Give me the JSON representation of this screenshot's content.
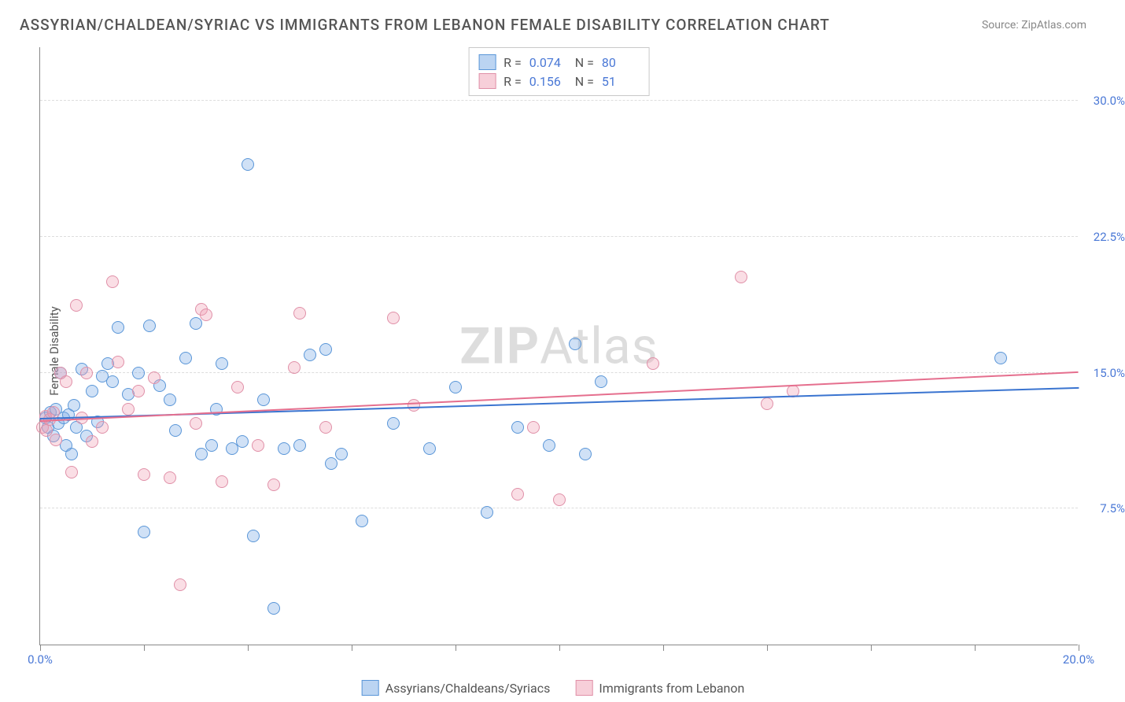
{
  "title": "ASSYRIAN/CHALDEAN/SYRIAC VS IMMIGRANTS FROM LEBANON FEMALE DISABILITY CORRELATION CHART",
  "source": "Source: ZipAtlas.com",
  "ylabel": "Female Disability",
  "watermark_bold": "ZIP",
  "watermark_rest": "Atlas",
  "chart": {
    "type": "scatter",
    "xlim": [
      0,
      20
    ],
    "ylim": [
      0,
      33
    ],
    "xticks": [
      0,
      2,
      4,
      6,
      8,
      10,
      12,
      14,
      16,
      18,
      20
    ],
    "xtick_labels_shown": {
      "0": "0.0%",
      "20": "20.0%"
    },
    "ygrid": [
      7.5,
      15.0,
      22.5,
      30.0
    ],
    "ytick_labels": [
      "7.5%",
      "15.0%",
      "22.5%",
      "30.0%"
    ],
    "background_color": "#ffffff",
    "grid_color": "#dddddd",
    "axis_color": "#888888",
    "title_fontsize": 19,
    "label_fontsize": 15,
    "tick_color": "#4a78d6"
  },
  "series": [
    {
      "name": "Assyrians/Chaldeans/Syriacs",
      "key": "blue",
      "marker_fill": "rgba(120,170,230,0.35)",
      "marker_stroke": "#5a96d8",
      "trend_color": "#3a74d0",
      "stats": {
        "R": "0.074",
        "N": "80"
      },
      "trend": {
        "x0": 0,
        "y0": 12.4,
        "x1": 20,
        "y1": 14.1
      },
      "points": [
        [
          0.1,
          12.5
        ],
        [
          0.15,
          12.0
        ],
        [
          0.2,
          12.8
        ],
        [
          0.25,
          11.5
        ],
        [
          0.3,
          13.0
        ],
        [
          0.35,
          12.2
        ],
        [
          0.4,
          15.0
        ],
        [
          0.45,
          12.5
        ],
        [
          0.5,
          11.0
        ],
        [
          0.55,
          12.7
        ],
        [
          0.6,
          10.5
        ],
        [
          0.65,
          13.2
        ],
        [
          0.7,
          12.0
        ],
        [
          0.8,
          15.2
        ],
        [
          0.9,
          11.5
        ],
        [
          1.0,
          14.0
        ],
        [
          1.1,
          12.3
        ],
        [
          1.2,
          14.8
        ],
        [
          1.3,
          15.5
        ],
        [
          1.4,
          14.5
        ],
        [
          1.5,
          17.5
        ],
        [
          1.7,
          13.8
        ],
        [
          1.9,
          15.0
        ],
        [
          2.0,
          6.2
        ],
        [
          2.1,
          17.6
        ],
        [
          2.3,
          14.3
        ],
        [
          2.5,
          13.5
        ],
        [
          2.6,
          11.8
        ],
        [
          2.8,
          15.8
        ],
        [
          3.0,
          17.7
        ],
        [
          3.1,
          10.5
        ],
        [
          3.3,
          11.0
        ],
        [
          3.4,
          13.0
        ],
        [
          3.5,
          15.5
        ],
        [
          3.7,
          10.8
        ],
        [
          3.9,
          11.2
        ],
        [
          4.0,
          26.5
        ],
        [
          4.1,
          6.0
        ],
        [
          4.3,
          13.5
        ],
        [
          4.5,
          2.0
        ],
        [
          4.7,
          10.8
        ],
        [
          5.0,
          11.0
        ],
        [
          5.2,
          16.0
        ],
        [
          5.5,
          16.3
        ],
        [
          5.6,
          10.0
        ],
        [
          5.8,
          10.5
        ],
        [
          6.2,
          6.8
        ],
        [
          6.8,
          12.2
        ],
        [
          7.5,
          10.8
        ],
        [
          8.0,
          14.2
        ],
        [
          8.6,
          7.3
        ],
        [
          9.2,
          12.0
        ],
        [
          9.8,
          11.0
        ],
        [
          10.3,
          16.6
        ],
        [
          10.5,
          10.5
        ],
        [
          10.8,
          14.5
        ],
        [
          18.5,
          15.8
        ]
      ]
    },
    {
      "name": "Immigrants from Lebanon",
      "key": "pink",
      "marker_fill": "rgba(240,160,180,0.35)",
      "marker_stroke": "#e090a8",
      "trend_color": "#e56f8e",
      "stats": {
        "R": "0.156",
        "N": "51"
      },
      "trend": {
        "x0": 0,
        "y0": 12.3,
        "x1": 20,
        "y1": 15.0
      },
      "points": [
        [
          0.05,
          12.0
        ],
        [
          0.1,
          12.6
        ],
        [
          0.12,
          11.8
        ],
        [
          0.18,
          12.4
        ],
        [
          0.25,
          12.8
        ],
        [
          0.3,
          11.3
        ],
        [
          0.4,
          15.0
        ],
        [
          0.5,
          14.5
        ],
        [
          0.6,
          9.5
        ],
        [
          0.7,
          18.7
        ],
        [
          0.8,
          12.5
        ],
        [
          0.9,
          15.0
        ],
        [
          1.0,
          11.2
        ],
        [
          1.2,
          12.0
        ],
        [
          1.4,
          20.0
        ],
        [
          1.5,
          15.6
        ],
        [
          1.7,
          13.0
        ],
        [
          1.9,
          14.0
        ],
        [
          2.0,
          9.4
        ],
        [
          2.2,
          14.7
        ],
        [
          2.5,
          9.2
        ],
        [
          2.7,
          3.3
        ],
        [
          3.0,
          12.2
        ],
        [
          3.1,
          18.5
        ],
        [
          3.2,
          18.2
        ],
        [
          3.5,
          9.0
        ],
        [
          3.8,
          14.2
        ],
        [
          4.2,
          11.0
        ],
        [
          4.5,
          8.8
        ],
        [
          4.9,
          15.3
        ],
        [
          5.0,
          18.3
        ],
        [
          5.5,
          12.0
        ],
        [
          6.8,
          18.0
        ],
        [
          7.2,
          13.2
        ],
        [
          9.2,
          8.3
        ],
        [
          9.5,
          12.0
        ],
        [
          10.0,
          8.0
        ],
        [
          11.8,
          15.5
        ],
        [
          13.5,
          20.3
        ],
        [
          14.0,
          13.3
        ],
        [
          14.5,
          14.0
        ]
      ]
    }
  ],
  "stats_box": {
    "R_label": "R =",
    "N_label": "N ="
  },
  "bottom_legend": {
    "series1": "Assyrians/Chaldeans/Syriacs",
    "series2": "Immigrants from Lebanon"
  }
}
